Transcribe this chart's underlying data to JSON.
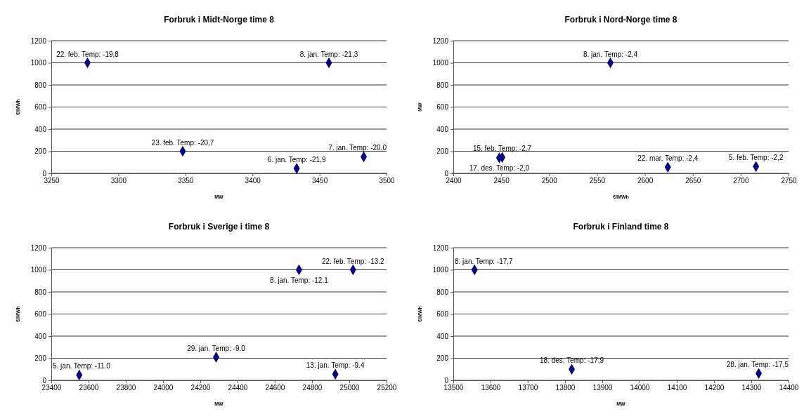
{
  "chart_data": [
    {
      "type": "scatter",
      "title": "Forbruk i Midt-Norge time 8",
      "xlabel": "MW",
      "ylabel": "€/MWh",
      "marker": "diamond",
      "grid": "y",
      "series": [
        {
          "color": "#000080",
          "x": [
            3277,
            3457,
            3348,
            3433,
            3483
          ],
          "values": [
            1000,
            1000,
            200,
            45,
            150
          ]
        }
      ],
      "xlim": [
        3250,
        3500
      ],
      "xticks": [
        3250,
        3300,
        3350,
        3400,
        3450,
        3500
      ],
      "ylim": [
        0,
        1200
      ],
      "yticks": [
        0,
        200,
        400,
        600,
        800,
        1000,
        1200
      ],
      "annotations": [
        {
          "text": "22. feb. Temp: -19,8",
          "x": 3277,
          "y": 1000
        },
        {
          "text": "8. jan. Temp: -21,3",
          "x": 3457,
          "y": 1000
        },
        {
          "text": "23. feb. Temp: -20,7",
          "x": 3348,
          "y": 200
        },
        {
          "text": "6. jan. Temp: -21,9",
          "x": 3433,
          "y": 45
        },
        {
          "text": "7. jan. Temp: -20,0",
          "x": 3483,
          "y": 150
        }
      ]
    },
    {
      "type": "scatter",
      "title": "Forbruk i Nord-Norge time 8",
      "xlabel": "€/MWh",
      "ylabel": "MW",
      "marker": "diamond",
      "grid": "y",
      "series": [
        {
          "color": "#000080",
          "x": [
            2448,
            2451,
            2564,
            2624,
            2716
          ],
          "values": [
            140,
            145,
            1000,
            55,
            62
          ]
        }
      ],
      "xlim": [
        2400,
        2750
      ],
      "xticks": [
        2400,
        2450,
        2500,
        2550,
        2600,
        2650,
        2700,
        2750
      ],
      "ylim": [
        0,
        1200
      ],
      "yticks": [
        0,
        200,
        400,
        600,
        800,
        1000,
        1200
      ],
      "annotations": [
        {
          "text": "15. feb. Temp: -2,7",
          "x": 2451,
          "y": 145
        },
        {
          "text": "17. des. Temp: -2,0",
          "x": 2448,
          "y": 140
        },
        {
          "text": "8. jan. Temp: -2,4",
          "x": 2564,
          "y": 1000
        },
        {
          "text": "22. mar. Temp: -2,4",
          "x": 2624,
          "y": 55
        },
        {
          "text": "5. feb. Temp: -2,2",
          "x": 2716,
          "y": 62
        }
      ]
    },
    {
      "type": "scatter",
      "title": "Forbruk i Sverige i time 8",
      "xlabel": "MW",
      "ylabel": "€/MWh",
      "marker": "diamond",
      "grid": "y",
      "series": [
        {
          "color": "#000080",
          "x": [
            23550,
            24285,
            24730,
            25020,
            24925
          ],
          "values": [
            48,
            210,
            1000,
            1000,
            55
          ]
        }
      ],
      "xlim": [
        23400,
        25200
      ],
      "xticks": [
        23400,
        23600,
        23800,
        24000,
        24200,
        24400,
        24600,
        24800,
        25000,
        25200
      ],
      "ylim": [
        0,
        1200
      ],
      "yticks": [
        0,
        200,
        400,
        600,
        800,
        1000,
        1200
      ],
      "annotations": [
        {
          "text": "5. jan. Temp: -11.0",
          "x": 23550,
          "y": 48
        },
        {
          "text": "29. jan. Temp: -9.0",
          "x": 24285,
          "y": 210
        },
        {
          "text": "22. feb. Temp: -13.2",
          "x": 25020,
          "y": 1000
        },
        {
          "text": "8. jan. Temp: -12.1",
          "x": 24730,
          "y": 1000
        },
        {
          "text": "13. jan. Temp: -9.4",
          "x": 24925,
          "y": 55
        }
      ]
    },
    {
      "type": "scatter",
      "title": "Forbruk i Finland time 8",
      "xlabel": "MW",
      "ylabel": "€/MWh",
      "marker": "diamond",
      "grid": "y",
      "series": [
        {
          "color": "#000080",
          "x": [
            13557,
            13818,
            14320
          ],
          "values": [
            1000,
            100,
            62
          ]
        }
      ],
      "xlim": [
        13500,
        14400
      ],
      "xticks": [
        13500,
        13600,
        13700,
        13800,
        13900,
        14000,
        14100,
        14200,
        14300,
        14400
      ],
      "ylim": [
        0,
        1200
      ],
      "yticks": [
        0,
        200,
        400,
        600,
        800,
        1000,
        1200
      ],
      "annotations": [
        {
          "text": "8. jan. Temp: -17,7",
          "x": 13557,
          "y": 1000
        },
        {
          "text": "18. des. Temp: -17,9",
          "x": 13818,
          "y": 100
        },
        {
          "text": "28. jan. Temp: -17,5",
          "x": 14320,
          "y": 62
        }
      ]
    }
  ]
}
